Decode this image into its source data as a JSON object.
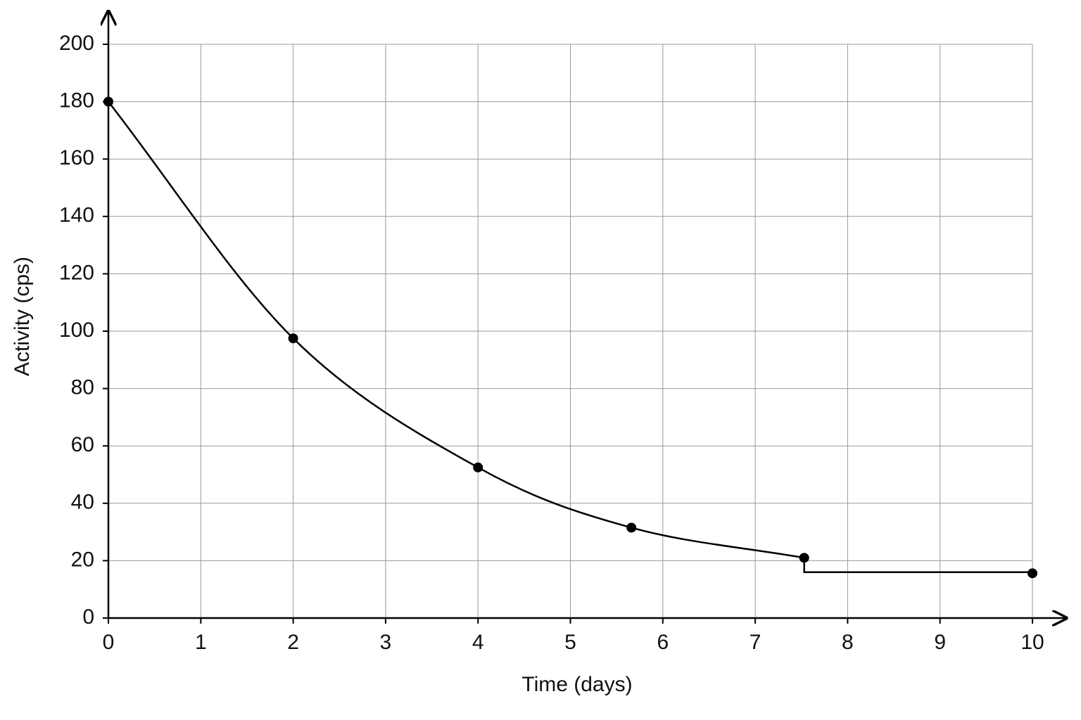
{
  "chart_data": {
    "type": "line",
    "x_label": "Time (days)",
    "y_label": "Activity (cps)",
    "xlim": [
      0,
      10
    ],
    "ylim": [
      0,
      200
    ],
    "xticks": [
      0,
      1,
      2,
      3,
      4,
      5,
      6,
      7,
      8,
      9,
      10
    ],
    "yticks": [
      0,
      20,
      40,
      60,
      80,
      100,
      120,
      140,
      160,
      180,
      200
    ],
    "grid": true,
    "series": [
      {
        "color": "#000000",
        "marker": false,
        "x": [
          0,
          2,
          4,
          5.66,
          7.53,
          7.53,
          10
        ],
        "values": [
          180,
          97.5,
          52.5,
          31.5,
          21,
          16,
          16
        ]
      },
      {
        "color": "#000000",
        "marker": true,
        "line": false,
        "x": [
          0,
          2,
          4,
          5.66,
          7.53,
          10
        ],
        "values": [
          180,
          97.5,
          52.5,
          31.5,
          21,
          15.6
        ]
      }
    ]
  }
}
